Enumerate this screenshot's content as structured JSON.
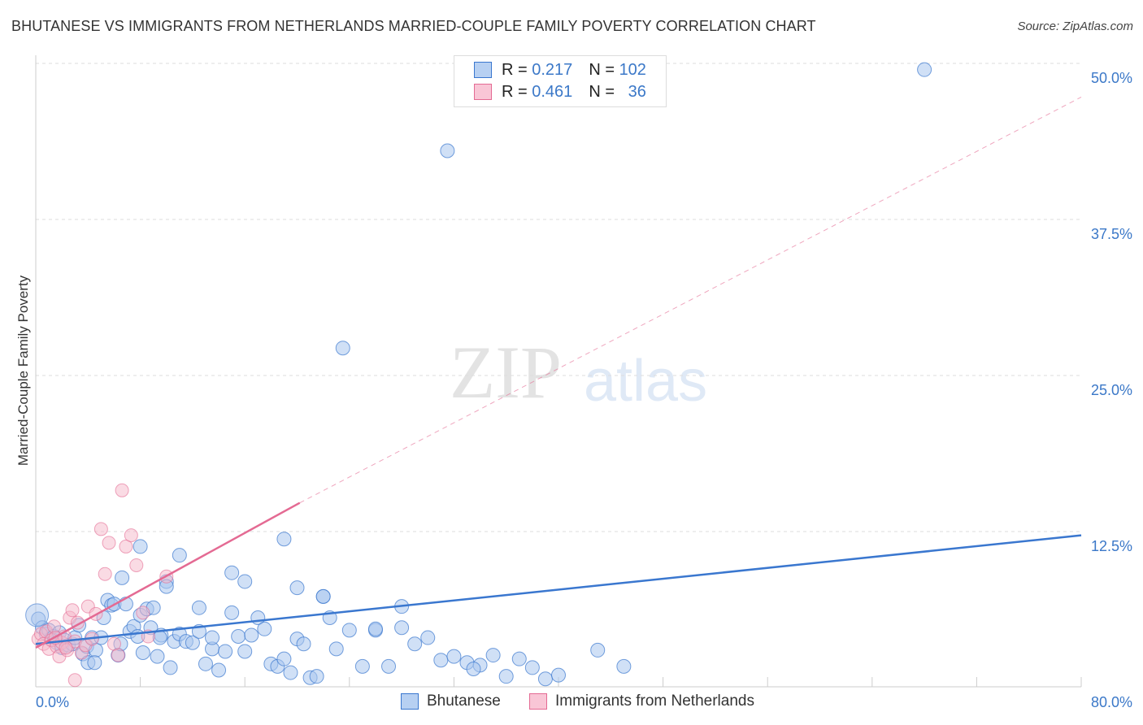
{
  "header": {
    "title": "BHUTANESE VS IMMIGRANTS FROM NETHERLANDS MARRIED-COUPLE FAMILY POVERTY CORRELATION CHART",
    "source": "Source: ZipAtlas.com"
  },
  "legend": {
    "row1": {
      "r_label": "R =",
      "r_value": "0.217",
      "n_label": "N =",
      "n_value": "102"
    },
    "row2": {
      "r_label": "R =",
      "r_value": "0.461",
      "n_label": "N =",
      "n_value": "36"
    }
  },
  "watermark": {
    "zip": "ZIP",
    "atlas": "atlas"
  },
  "colors": {
    "blue": "#3a77cf",
    "blue_fill": "#a9c6ee",
    "pink": "#e46a93",
    "pink_fill": "#f6b8ca",
    "grid": "#dddddd",
    "tick": "#3b78c8"
  },
  "chart_data": {
    "type": "scatter",
    "title": "BHUTANESE VS IMMIGRANTS FROM NETHERLANDS MARRIED-COUPLE FAMILY POVERTY CORRELATION CHART",
    "xlabel": "",
    "ylabel": "Married-Couple Family Poverty",
    "xlim": [
      0,
      80
    ],
    "ylim": [
      0,
      52
    ],
    "x_tick_labels": [
      {
        "value": 0,
        "label": "0.0%"
      },
      {
        "value": 80,
        "label": "80.0%"
      }
    ],
    "y_tick_labels": [
      {
        "value": 12.5,
        "label": "12.5%"
      },
      {
        "value": 25,
        "label": "25.0%"
      },
      {
        "value": 37.5,
        "label": "37.5%"
      },
      {
        "value": 50,
        "label": "50.0%"
      }
    ],
    "legend_position": "bottom",
    "series": [
      {
        "name": "Bhutanese",
        "color": "#3a77cf",
        "trend": {
          "x0": 0,
          "y0": 3.5,
          "x1": 80,
          "y1": 12.2
        },
        "points": [
          [
            0.2,
            5.5
          ],
          [
            0.5,
            4.8
          ],
          [
            0.8,
            4.3
          ],
          [
            1.0,
            4.6
          ],
          [
            1.2,
            3.9
          ],
          [
            1.4,
            4.1
          ],
          [
            1.6,
            3.6
          ],
          [
            1.8,
            4.4
          ],
          [
            2.0,
            3.2
          ],
          [
            2.2,
            3.8
          ],
          [
            2.5,
            3.4
          ],
          [
            2.8,
            3.5
          ],
          [
            3.0,
            4.0
          ],
          [
            3.3,
            5.0
          ],
          [
            3.6,
            2.7
          ],
          [
            3.9,
            3.3
          ],
          [
            4.0,
            2.0
          ],
          [
            4.3,
            4.0
          ],
          [
            4.6,
            3.0
          ],
          [
            5.0,
            4.0
          ],
          [
            5.2,
            5.6
          ],
          [
            5.5,
            7.0
          ],
          [
            5.8,
            6.6
          ],
          [
            6.0,
            6.7
          ],
          [
            6.3,
            2.6
          ],
          [
            6.6,
            8.8
          ],
          [
            6.9,
            6.7
          ],
          [
            7.2,
            4.5
          ],
          [
            7.5,
            4.9
          ],
          [
            7.8,
            4.1
          ],
          [
            8.0,
            5.8
          ],
          [
            8.2,
            2.8
          ],
          [
            8.5,
            6.3
          ],
          [
            8.8,
            4.8
          ],
          [
            9.0,
            6.4
          ],
          [
            9.3,
            2.5
          ],
          [
            9.6,
            4.2
          ],
          [
            10.0,
            8.5
          ],
          [
            10.3,
            1.6
          ],
          [
            10.6,
            3.7
          ],
          [
            11.0,
            4.3
          ],
          [
            11.5,
            3.7
          ],
          [
            12.0,
            3.6
          ],
          [
            12.5,
            4.5
          ],
          [
            13.0,
            1.9
          ],
          [
            13.5,
            3.1
          ],
          [
            14.0,
            1.4
          ],
          [
            14.5,
            2.9
          ],
          [
            15.0,
            6.0
          ],
          [
            15.5,
            4.1
          ],
          [
            16.0,
            2.9
          ],
          [
            16.5,
            4.2
          ],
          [
            17.0,
            5.6
          ],
          [
            17.5,
            4.7
          ],
          [
            18.0,
            1.9
          ],
          [
            18.5,
            1.7
          ],
          [
            19.0,
            2.3
          ],
          [
            19.5,
            1.2
          ],
          [
            20.0,
            3.9
          ],
          [
            20.5,
            3.5
          ],
          [
            21.0,
            0.8
          ],
          [
            21.5,
            0.9
          ],
          [
            22.0,
            7.3
          ],
          [
            22.5,
            5.6
          ],
          [
            23.0,
            3.1
          ],
          [
            24.0,
            4.6
          ],
          [
            25.0,
            1.7
          ],
          [
            26.0,
            4.6
          ],
          [
            27.0,
            1.7
          ],
          [
            28.0,
            4.8
          ],
          [
            29.0,
            3.5
          ],
          [
            30.0,
            4.0
          ],
          [
            31.0,
            2.2
          ],
          [
            32.0,
            2.5
          ],
          [
            33.0,
            2.0
          ],
          [
            34.0,
            1.8
          ],
          [
            35.0,
            2.6
          ],
          [
            36.0,
            0.9
          ],
          [
            37.0,
            2.3
          ],
          [
            38.0,
            1.6
          ],
          [
            39.0,
            0.7
          ],
          [
            40.0,
            1.0
          ],
          [
            43.0,
            3.0
          ],
          [
            45.0,
            1.7
          ],
          [
            8.0,
            11.3
          ],
          [
            10.0,
            8.1
          ],
          [
            11.0,
            10.6
          ],
          [
            12.5,
            6.4
          ],
          [
            15.0,
            9.2
          ],
          [
            16.0,
            8.5
          ],
          [
            19.0,
            11.9
          ],
          [
            20.0,
            8.0
          ],
          [
            22.0,
            7.3
          ],
          [
            28.0,
            6.5
          ],
          [
            23.5,
            27.2
          ],
          [
            31.5,
            43.0
          ],
          [
            68.0,
            49.5
          ],
          [
            4.5,
            2.0
          ],
          [
            6.5,
            3.5
          ],
          [
            9.5,
            4.0
          ],
          [
            13.5,
            4.0
          ],
          [
            26.0,
            4.7
          ],
          [
            33.5,
            1.5
          ]
        ]
      },
      {
        "name": "Immigrants from Netherlands",
        "color": "#e46a93",
        "trend": {
          "x0": 0,
          "y0": 3.2,
          "x1": 20.2,
          "y1": 14.8,
          "dash_x1": 80,
          "dash_y1": 47.3
        },
        "points": [
          [
            0.2,
            3.9
          ],
          [
            0.4,
            4.3
          ],
          [
            0.6,
            3.5
          ],
          [
            0.8,
            4.5
          ],
          [
            1.0,
            3.1
          ],
          [
            1.2,
            3.8
          ],
          [
            1.4,
            4.9
          ],
          [
            1.6,
            3.3
          ],
          [
            1.8,
            2.5
          ],
          [
            2.0,
            3.6
          ],
          [
            2.2,
            4.1
          ],
          [
            2.4,
            3.0
          ],
          [
            2.6,
            5.6
          ],
          [
            2.8,
            6.2
          ],
          [
            3.0,
            3.7
          ],
          [
            3.2,
            5.2
          ],
          [
            3.5,
            2.8
          ],
          [
            3.8,
            3.4
          ],
          [
            4.0,
            6.5
          ],
          [
            4.3,
            3.9
          ],
          [
            4.6,
            5.9
          ],
          [
            5.0,
            12.7
          ],
          [
            5.3,
            9.1
          ],
          [
            5.6,
            11.6
          ],
          [
            6.0,
            3.5
          ],
          [
            6.3,
            2.6
          ],
          [
            6.6,
            15.8
          ],
          [
            6.9,
            11.3
          ],
          [
            7.3,
            12.2
          ],
          [
            7.7,
            9.8
          ],
          [
            8.2,
            6.0
          ],
          [
            8.6,
            4.1
          ],
          [
            10.0,
            8.9
          ],
          [
            3.0,
            0.6
          ],
          [
            1.5,
            4.0
          ],
          [
            2.3,
            3.2
          ]
        ]
      }
    ]
  }
}
